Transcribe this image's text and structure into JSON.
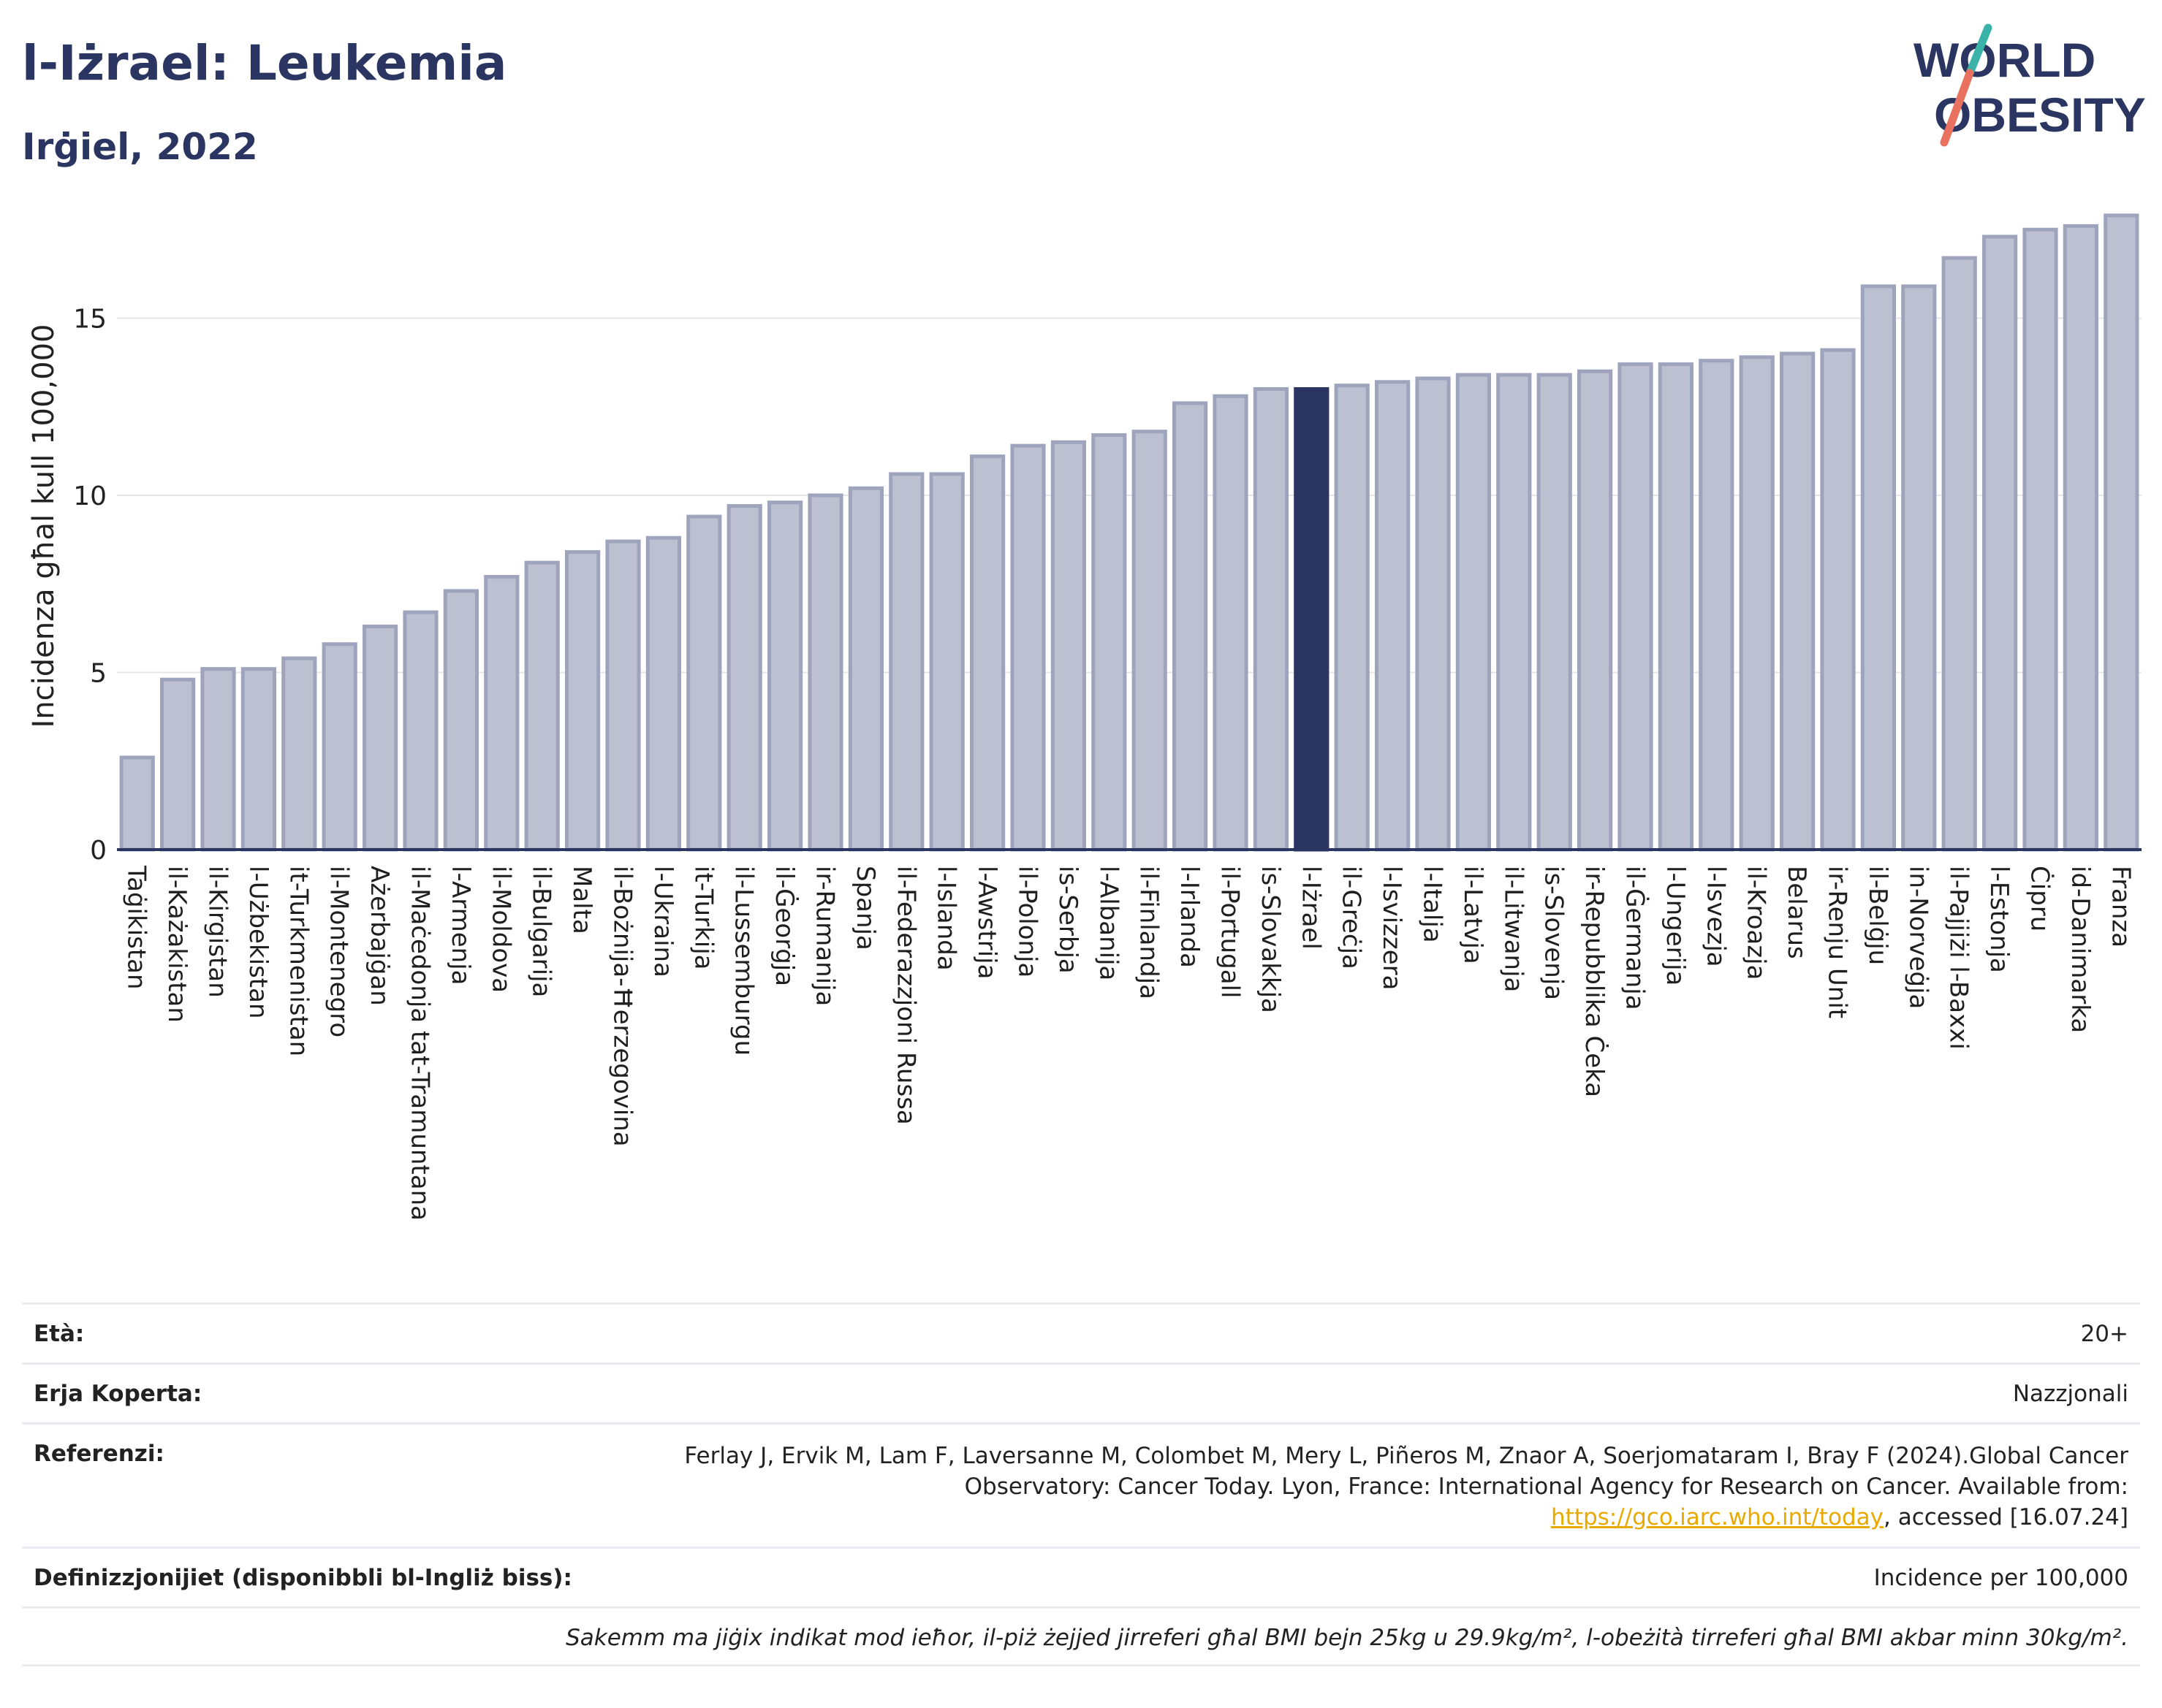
{
  "header": {
    "title": "l-Iżrael: Leukemia",
    "subtitle": "Irġiel, 2022"
  },
  "logo": {
    "line1": "WORLD",
    "line2": "OBESITY",
    "colors": {
      "text": "#2b3561",
      "slash_teal": "#3bb3a9",
      "slash_coral": "#e8715f"
    }
  },
  "colors": {
    "bar_fill": "#bcc0d0",
    "bar_stroke": "#9fa4bd",
    "highlight": "#2b3561",
    "gridline": "#e6e6ea",
    "axis_line": "#2b3561"
  },
  "chart_data": {
    "type": "bar",
    "ylabel": "Incidenza għal kull 100,000",
    "xlabel": "",
    "ylim": [
      0,
      18
    ],
    "yticks": [
      0,
      5,
      10,
      15
    ],
    "grid": true,
    "highlight_category": "l-Iżrael",
    "categories": [
      "Taġikistan",
      "il-Każakistan",
      "il-Kirgistan",
      "l-Użbekistan",
      "it-Turkmenistan",
      "il-Montenegro",
      "Ażerbajġan",
      "il-Maċedonja tat-Tramuntana",
      "l-Armenja",
      "il-Moldova",
      "il-Bulgarija",
      "Malta",
      "il-Bożnija-Ħerzegovina",
      "l-Ukraina",
      "it-Turkija",
      "il-Lussemburgu",
      "il-Ġeorġja",
      "ir-Rumanija",
      "Spanja",
      "il-Federazzjoni Russa",
      "l-Islanda",
      "l-Awstrija",
      "il-Polonja",
      "is-Serbja",
      "l-Albanija",
      "il-Finlandja",
      "l-Irlanda",
      "il-Portugall",
      "is-Slovakkja",
      "l-Iżrael",
      "il-Greċja",
      "l-Isvizzera",
      "l-Italja",
      "il-Latvja",
      "il-Litwanja",
      "is-Slovenja",
      "ir-Repubblika Ċeka",
      "il-Ġermanja",
      "l-Ungerija",
      "l-Isvezja",
      "il-Kroazja",
      "Belarus",
      "ir-Renju Unit",
      "il-Belġju",
      "in-Norveġja",
      "il-Pajjiżi l-Baxxi",
      "l-Estonja",
      "Ċipru",
      "id-Danimarka",
      "Franza"
    ],
    "values": [
      2.6,
      4.8,
      5.1,
      5.1,
      5.4,
      5.8,
      6.3,
      6.7,
      7.3,
      7.7,
      8.1,
      8.4,
      8.7,
      8.8,
      9.4,
      9.7,
      9.8,
      10.0,
      10.2,
      10.6,
      10.6,
      11.1,
      11.4,
      11.5,
      11.7,
      11.8,
      12.6,
      12.8,
      13.0,
      13.0,
      13.1,
      13.2,
      13.3,
      13.4,
      13.4,
      13.4,
      13.5,
      13.7,
      13.7,
      13.8,
      13.9,
      14.0,
      14.1,
      15.9,
      15.9,
      16.7,
      17.3,
      17.5,
      17.6,
      17.9
    ]
  },
  "info": {
    "age_label": "Età:",
    "age_value": "20+",
    "coverage_label": "Erja Koperta:",
    "coverage_value": "Nazzjonali",
    "references_label": "Referenzi:",
    "references_text": "Ferlay J, Ervik M, Lam F, Laversanne M, Colombet M, Mery L, Piñeros M, Znaor A, Soerjomataram I, Bray F (2024).Global Cancer Observatory: Cancer Today. Lyon, France: International Agency for Research on Cancer. Available from: ",
    "references_link": "https://gco.iarc.who.int/today",
    "references_suffix": ", accessed [16.07.24]",
    "definitions_label": "Definizzjonijiet (disponibbli bl-Ingliż biss):",
    "definitions_value": "Incidence per 100,000",
    "note": "Sakemm ma jiġix indikat mod ieħor, il-piż żejjed jirreferi għal BMI bejn 25kg u 29.9kg/m², l-obeżità tirreferi għal BMI akbar minn 30kg/m²."
  }
}
